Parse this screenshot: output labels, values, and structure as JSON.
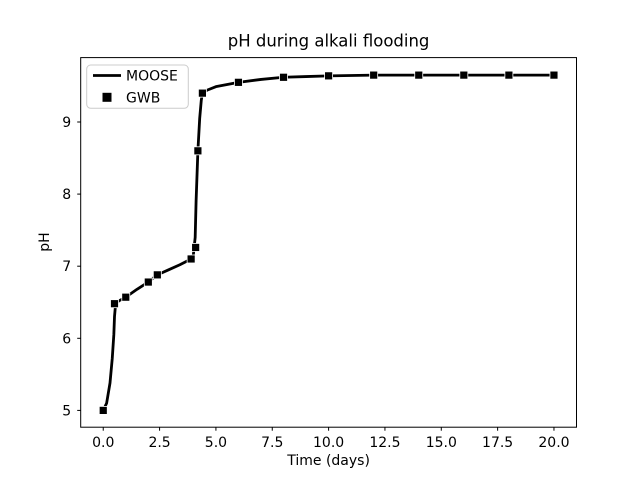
{
  "figure": {
    "title": "pH during alkali flooding"
  },
  "chart_data": {
    "type": "line",
    "title": "pH during alkali flooding",
    "xlabel": "Time (days)",
    "ylabel": "pH",
    "xlim": [
      -1,
      21
    ],
    "ylim": [
      4.767,
      9.893
    ],
    "grid": false,
    "legend_position": "upper-left",
    "background": "#ffffff",
    "axis_color": "#000000",
    "x_ticks": {
      "values": [
        0,
        2.5,
        5,
        7.5,
        10,
        12.5,
        15,
        17.5,
        20
      ],
      "labels": [
        "0.0",
        "2.5",
        "5.0",
        "7.5",
        "10.0",
        "12.5",
        "15.0",
        "17.5",
        "20.0"
      ]
    },
    "y_ticks": {
      "values": [
        5,
        6,
        7,
        8,
        9
      ],
      "labels": [
        "5",
        "6",
        "7",
        "8",
        "9"
      ]
    },
    "series": [
      {
        "name": "MOOSE",
        "type": "line",
        "color": "#000000",
        "linewidth": 2.8,
        "points": [
          [
            0,
            5.0
          ],
          [
            0.15,
            5.1
          ],
          [
            0.3,
            5.38
          ],
          [
            0.4,
            5.72
          ],
          [
            0.47,
            6.05
          ],
          [
            0.5,
            6.3
          ],
          [
            0.55,
            6.48
          ],
          [
            0.7,
            6.52
          ],
          [
            1.0,
            6.57
          ],
          [
            1.5,
            6.68
          ],
          [
            2.0,
            6.78
          ],
          [
            2.4,
            6.88
          ],
          [
            2.9,
            6.95
          ],
          [
            3.4,
            7.02
          ],
          [
            3.9,
            7.1
          ],
          [
            4.0,
            7.16
          ],
          [
            4.08,
            7.4
          ],
          [
            4.12,
            7.9
          ],
          [
            4.2,
            8.6
          ],
          [
            4.28,
            9.05
          ],
          [
            4.35,
            9.3
          ],
          [
            4.4,
            9.4
          ],
          [
            4.6,
            9.44
          ],
          [
            5.0,
            9.49
          ],
          [
            5.5,
            9.52
          ],
          [
            6.0,
            9.55
          ],
          [
            7.0,
            9.59
          ],
          [
            8.0,
            9.62
          ],
          [
            9.0,
            9.63
          ],
          [
            10.0,
            9.64
          ],
          [
            11.0,
            9.645
          ],
          [
            12.0,
            9.65
          ],
          [
            14.0,
            9.65
          ],
          [
            16.0,
            9.65
          ],
          [
            18.0,
            9.65
          ],
          [
            20.0,
            9.65
          ]
        ]
      },
      {
        "name": "GWB",
        "type": "scatter",
        "marker": "square",
        "color": "#000000",
        "markersize": 8,
        "points": [
          [
            0,
            5.0
          ],
          [
            0.5,
            6.48
          ],
          [
            1.0,
            6.57
          ],
          [
            2.0,
            6.78
          ],
          [
            2.4,
            6.88
          ],
          [
            3.9,
            7.1
          ],
          [
            4.1,
            7.26
          ],
          [
            4.2,
            8.6
          ],
          [
            4.4,
            9.4
          ],
          [
            6,
            9.55
          ],
          [
            8,
            9.62
          ],
          [
            10,
            9.64
          ],
          [
            12,
            9.65
          ],
          [
            14,
            9.65
          ],
          [
            16,
            9.65
          ],
          [
            18,
            9.65
          ],
          [
            20,
            9.65
          ]
        ]
      }
    ]
  }
}
